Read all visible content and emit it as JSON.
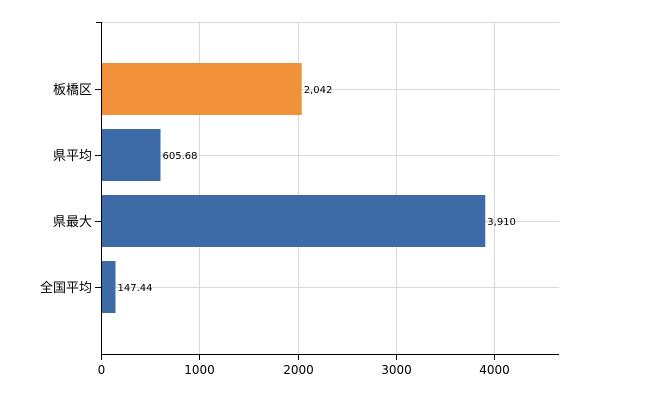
{
  "chart_data": {
    "type": "bar",
    "orientation": "horizontal",
    "categories": [
      "板橋区",
      "県平均",
      "県最大",
      "全国平均"
    ],
    "values": [
      2042,
      605.68,
      3910,
      147.44
    ],
    "value_labels": [
      "2,042",
      "605.68",
      "3,910",
      "147.44"
    ],
    "bar_colors": [
      "#f0913a",
      "#3d6ba8",
      "#3d6ba8",
      "#3d6ba8"
    ],
    "x_ticks": [
      0,
      1000,
      2000,
      3000,
      4000
    ],
    "x_tick_labels": [
      "0",
      "1000",
      "2000",
      "3000",
      "4000"
    ],
    "xlim": [
      0,
      4660
    ],
    "grid": true,
    "title": "",
    "xlabel": "",
    "ylabel": ""
  }
}
